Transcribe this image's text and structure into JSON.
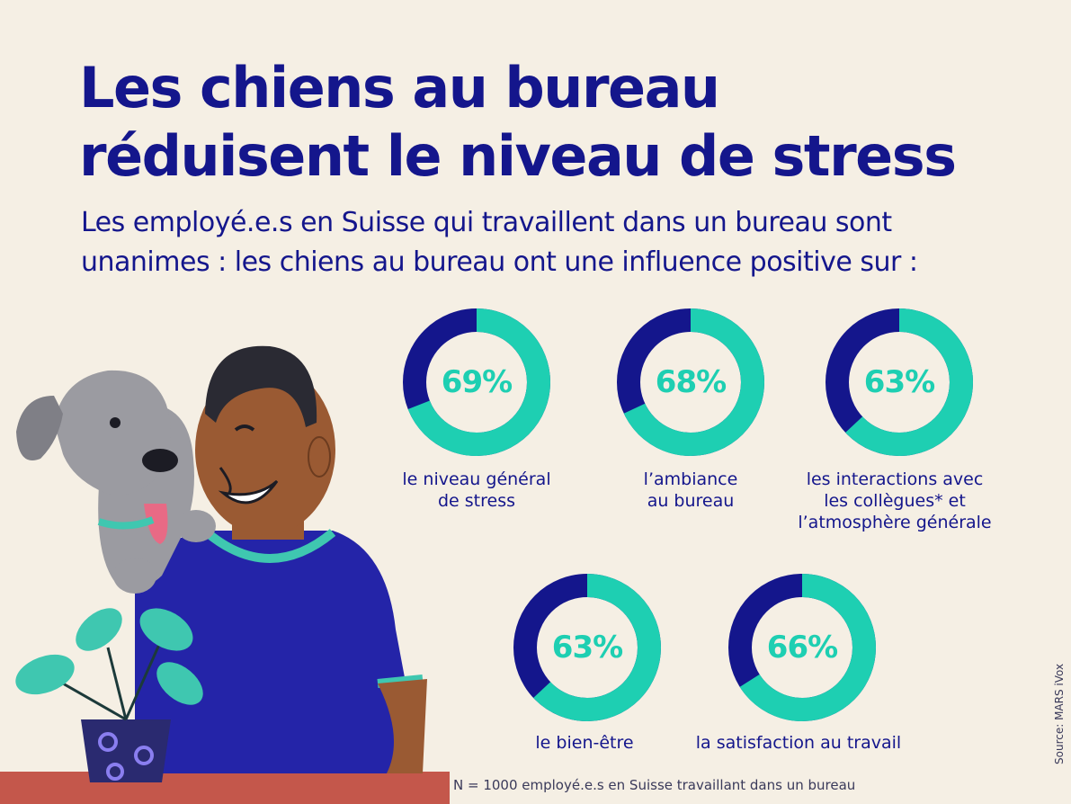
{
  "title": [
    "Les chiens au bureau",
    "réduisent le niveau de stress"
  ],
  "subtitle": [
    "Les employé.e.s en Suisse qui travaillent dans un bureau sont",
    "unanimes : les chiens au bureau ont une influence positive sur :"
  ],
  "colors": {
    "navy": "#14168c",
    "teal": "#1ecfb2",
    "background": "#f5efe4"
  },
  "chart_data": {
    "type": "pie",
    "variant": "donut",
    "unit": "%",
    "items": [
      {
        "value": 69,
        "display": "69%",
        "label": [
          "le niveau général",
          "de stress"
        ]
      },
      {
        "value": 68,
        "display": "68%",
        "label": [
          "l’ambiance",
          "au bureau"
        ]
      },
      {
        "value": 63,
        "display": "63%",
        "label": [
          "les interactions avec",
          "les collègues* et",
          "l’atmosphère générale"
        ]
      },
      {
        "value": 63,
        "display": "63%",
        "label": [
          "le bien-être"
        ]
      },
      {
        "value": 66,
        "display": "66%",
        "label": [
          "la satisfaction au travail"
        ]
      }
    ]
  },
  "footnote": "N = 1000 employé.e.s en Suisse travaillant dans un bureau",
  "source": "Source: MARS iVox"
}
